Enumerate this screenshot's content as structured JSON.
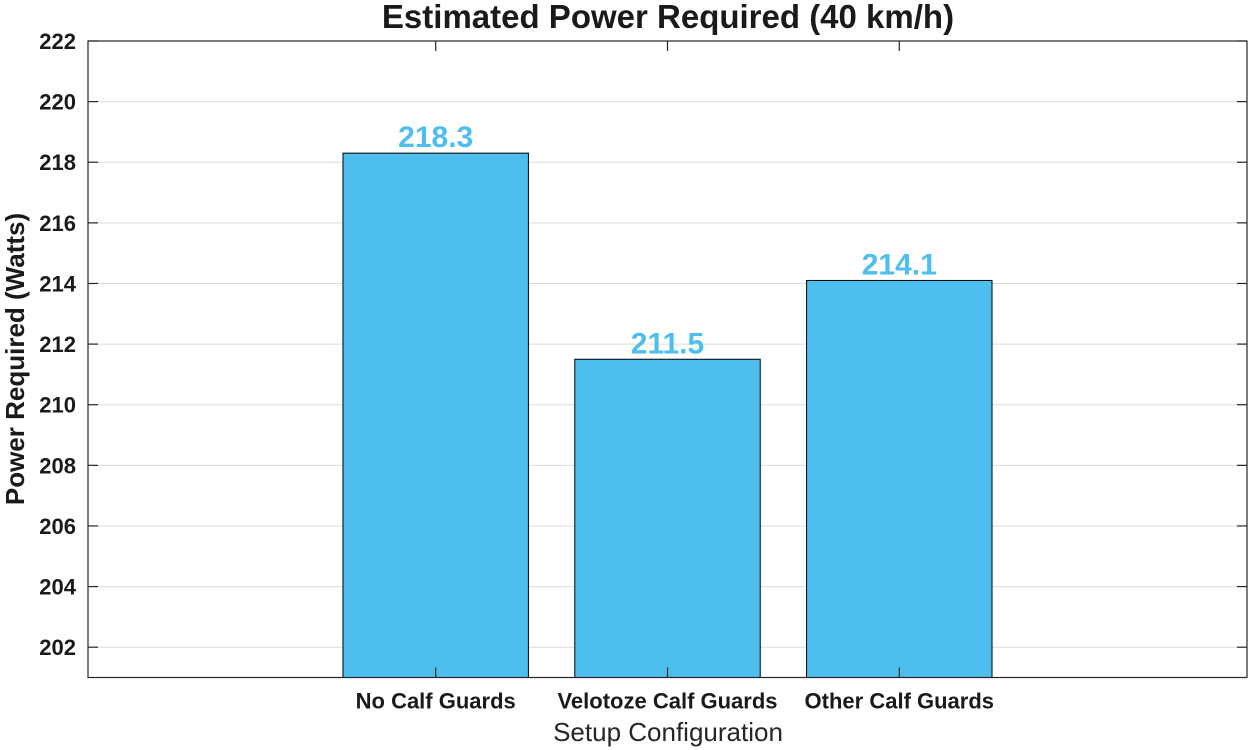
{
  "chart_data": {
    "type": "bar",
    "title": "Estimated Power Required (40 km/h)",
    "xlabel": "Setup Configuration",
    "ylabel": "Power Required (Watts)",
    "categories": [
      "No Calf Guards",
      "Velotoze Calf Guards",
      "Other Calf Guards"
    ],
    "values": [
      218.3,
      211.5,
      214.1
    ],
    "data_labels": [
      "218.3",
      "211.5",
      "214.1"
    ],
    "ylim": [
      201,
      222
    ],
    "yticks": [
      202,
      204,
      206,
      208,
      210,
      212,
      214,
      216,
      218,
      220,
      222
    ],
    "xlim": [
      0,
      5
    ],
    "bar_positions": [
      1.5,
      2.5,
      3.5
    ],
    "bar_width": 0.8,
    "grid": true,
    "colors": {
      "bar": "#4DBEEE",
      "bar_edge": "#000000",
      "label": "#4DBEEE",
      "grid": "#dcdcdc",
      "axis": "#262626"
    }
  }
}
